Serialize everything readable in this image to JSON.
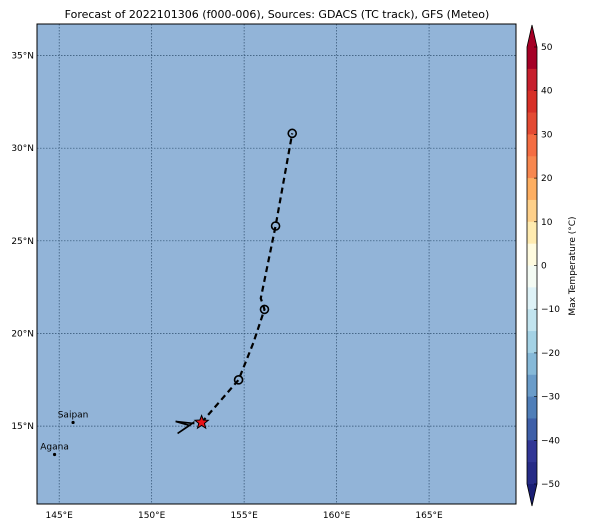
{
  "title": "Forecast of 2022101306 (f000-006), Sources: GDACS (TC track), GFS (Meteo)",
  "map": {
    "ocean_color": "#92b4d8",
    "grid_color": "#2f4f6f",
    "lon_ticks": [
      {
        "value": 145,
        "label": "145°E"
      },
      {
        "value": 150,
        "label": "150°E"
      },
      {
        "value": 155,
        "label": "155°E"
      },
      {
        "value": 160,
        "label": "160°E"
      },
      {
        "value": 165,
        "label": "165°E"
      }
    ],
    "lat_ticks": [
      {
        "value": 15,
        "label": "15°N"
      },
      {
        "value": 20,
        "label": "20°N"
      },
      {
        "value": 25,
        "label": "25°N"
      },
      {
        "value": 30,
        "label": "30°N"
      },
      {
        "value": 35,
        "label": "35°N"
      }
    ],
    "extent": {
      "lon_min": 143.8,
      "lon_max": 169.7,
      "lat_min": 10.8,
      "lat_max": 36.7
    },
    "cities": [
      {
        "name": "Saipan",
        "lon": 145.75,
        "lat": 15.2
      },
      {
        "name": "Agana",
        "lon": 144.75,
        "lat": 13.47
      }
    ]
  },
  "track": {
    "current_position": {
      "lon": 152.7,
      "lat": 15.2
    },
    "forecast_points": [
      {
        "lon": 154.7,
        "lat": 17.5
      },
      {
        "lon": 156.1,
        "lat": 21.3
      },
      {
        "lon": 156.7,
        "lat": 25.8
      },
      {
        "lon": 157.6,
        "lat": 30.8
      }
    ],
    "line_path": [
      {
        "lon": 152.7,
        "lat": 15.2
      },
      {
        "lon": 154.7,
        "lat": 17.5
      },
      {
        "lon": 155.5,
        "lat": 19.5
      },
      {
        "lon": 156.1,
        "lat": 21.3
      },
      {
        "lon": 155.9,
        "lat": 21.9
      },
      {
        "lon": 156.7,
        "lat": 25.8
      },
      {
        "lon": 157.6,
        "lat": 30.8
      }
    ],
    "star_color": "#e8141a"
  },
  "colorbar": {
    "label": "Max Temperature (°C)",
    "ticks": [
      {
        "value": 50,
        "label": "50"
      },
      {
        "value": 40,
        "label": "40"
      },
      {
        "value": 30,
        "label": "30"
      },
      {
        "value": 20,
        "label": "20"
      },
      {
        "value": 10,
        "label": "10"
      },
      {
        "value": 0,
        "label": "0"
      },
      {
        "value": -10,
        "label": "−10"
      },
      {
        "value": -20,
        "label": "−20"
      },
      {
        "value": -30,
        "label": "−30"
      },
      {
        "value": -40,
        "label": "−40"
      },
      {
        "value": -50,
        "label": "−50"
      }
    ],
    "bands": [
      {
        "from": 50,
        "to": 55,
        "color": "#a50026"
      },
      {
        "from": 45,
        "to": 50,
        "color": "#a50026"
      },
      {
        "from": 40,
        "to": 45,
        "color": "#c71f2d"
      },
      {
        "from": 35,
        "to": 40,
        "color": "#d73027"
      },
      {
        "from": 30,
        "to": 35,
        "color": "#e34a33"
      },
      {
        "from": 25,
        "to": 30,
        "color": "#f46d43"
      },
      {
        "from": 20,
        "to": 25,
        "color": "#f7874f"
      },
      {
        "from": 15,
        "to": 20,
        "color": "#fdae61"
      },
      {
        "from": 10,
        "to": 15,
        "color": "#fed08a"
      },
      {
        "from": 5,
        "to": 10,
        "color": "#ffebb0"
      },
      {
        "from": 0,
        "to": 5,
        "color": "#fffbdf"
      },
      {
        "from": -5,
        "to": 0,
        "color": "#f4fbf4"
      },
      {
        "from": -10,
        "to": -5,
        "color": "#def2f7"
      },
      {
        "from": -15,
        "to": -10,
        "color": "#c2e4ef"
      },
      {
        "from": -20,
        "to": -15,
        "color": "#a4d2e5"
      },
      {
        "from": -25,
        "to": -20,
        "color": "#86b9d8"
      },
      {
        "from": -30,
        "to": -25,
        "color": "#6a9cc9"
      },
      {
        "from": -35,
        "to": -30,
        "color": "#4f7eb8"
      },
      {
        "from": -40,
        "to": -35,
        "color": "#3e5fa8"
      },
      {
        "from": -45,
        "to": -40,
        "color": "#313695"
      },
      {
        "from": -50,
        "to": -45,
        "color": "#262b86"
      },
      {
        "from": -55,
        "to": -50,
        "color": "#1a1f75"
      }
    ]
  }
}
